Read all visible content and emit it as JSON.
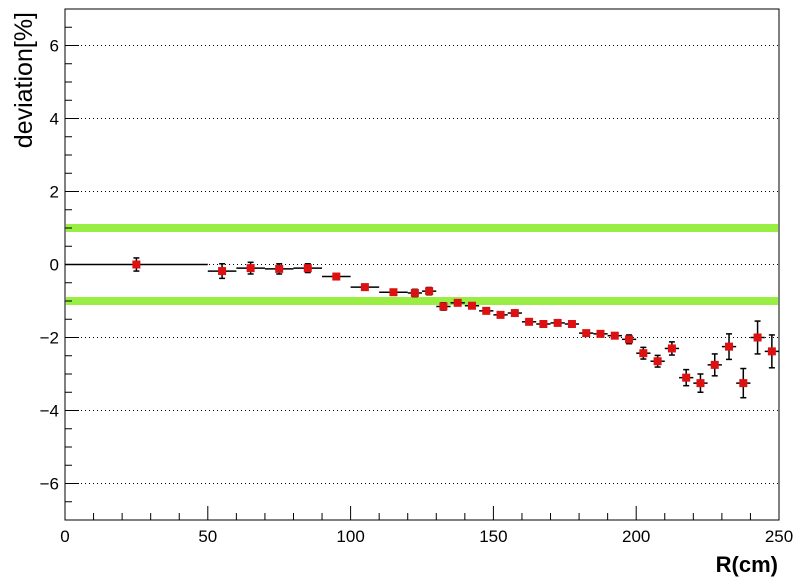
{
  "chart_data": {
    "type": "scatter",
    "xlabel": "R(cm)",
    "ylabel": "deviation[%]",
    "xlim": [
      0,
      250
    ],
    "ylim": [
      -7,
      7
    ],
    "x_major_ticks": [
      0,
      50,
      100,
      150,
      200,
      250
    ],
    "x_tick_labels": [
      "0",
      "50",
      "100",
      "150",
      "200",
      "250"
    ],
    "y_major_ticks": [
      -6,
      -4,
      -2,
      0,
      2,
      4,
      6
    ],
    "y_tick_labels": [
      "−6",
      "−4",
      "−2",
      "0",
      "2",
      "4",
      "6"
    ],
    "grid": "horizontal dotted at y major ticks",
    "reference_lines": [
      {
        "y": 1,
        "color": "#99ee44"
      },
      {
        "y": -1,
        "color": "#99ee44"
      }
    ],
    "marker_color": "#dd1111",
    "errorbar_color": "#000000",
    "points": [
      {
        "x": 25,
        "y": 0.0,
        "xerr": 25,
        "yerr": 0.18
      },
      {
        "x": 55,
        "y": -0.18,
        "xerr": 5,
        "yerr": 0.2
      },
      {
        "x": 65,
        "y": -0.1,
        "xerr": 5,
        "yerr": 0.16
      },
      {
        "x": 75,
        "y": -0.12,
        "xerr": 5,
        "yerr": 0.14
      },
      {
        "x": 85,
        "y": -0.1,
        "xerr": 5,
        "yerr": 0.12
      },
      {
        "x": 95,
        "y": -0.33,
        "xerr": 5,
        "yerr": 0.08
      },
      {
        "x": 105,
        "y": -0.62,
        "xerr": 5,
        "yerr": 0.06
      },
      {
        "x": 115,
        "y": -0.76,
        "xerr": 5,
        "yerr": 0.06
      },
      {
        "x": 122.5,
        "y": -0.78,
        "xerr": 2.5,
        "yerr": 0.1
      },
      {
        "x": 127.5,
        "y": -0.73,
        "xerr": 2.5,
        "yerr": 0.1
      },
      {
        "x": 132.5,
        "y": -1.15,
        "xerr": 2.5,
        "yerr": 0.1
      },
      {
        "x": 137.5,
        "y": -1.05,
        "xerr": 2.5,
        "yerr": 0.08
      },
      {
        "x": 142.5,
        "y": -1.13,
        "xerr": 2.5,
        "yerr": 0.06
      },
      {
        "x": 147.5,
        "y": -1.27,
        "xerr": 2.5,
        "yerr": 0.06
      },
      {
        "x": 152.5,
        "y": -1.38,
        "xerr": 2.5,
        "yerr": 0.06
      },
      {
        "x": 157.5,
        "y": -1.33,
        "xerr": 2.5,
        "yerr": 0.06
      },
      {
        "x": 162.5,
        "y": -1.57,
        "xerr": 2.5,
        "yerr": 0.06
      },
      {
        "x": 167.5,
        "y": -1.63,
        "xerr": 2.5,
        "yerr": 0.06
      },
      {
        "x": 172.5,
        "y": -1.6,
        "xerr": 2.5,
        "yerr": 0.06
      },
      {
        "x": 177.5,
        "y": -1.63,
        "xerr": 2.5,
        "yerr": 0.06
      },
      {
        "x": 182.5,
        "y": -1.88,
        "xerr": 2.5,
        "yerr": 0.06
      },
      {
        "x": 187.5,
        "y": -1.9,
        "xerr": 2.5,
        "yerr": 0.06
      },
      {
        "x": 192.5,
        "y": -1.95,
        "xerr": 2.5,
        "yerr": 0.08
      },
      {
        "x": 197.5,
        "y": -2.05,
        "xerr": 2.5,
        "yerr": 0.12
      },
      {
        "x": 202.5,
        "y": -2.43,
        "xerr": 2.5,
        "yerr": 0.16
      },
      {
        "x": 207.5,
        "y": -2.65,
        "xerr": 2.5,
        "yerr": 0.16
      },
      {
        "x": 212.5,
        "y": -2.3,
        "xerr": 2.5,
        "yerr": 0.18
      },
      {
        "x": 217.5,
        "y": -3.1,
        "xerr": 2.5,
        "yerr": 0.22
      },
      {
        "x": 222.5,
        "y": -3.25,
        "xerr": 2.5,
        "yerr": 0.25
      },
      {
        "x": 227.5,
        "y": -2.75,
        "xerr": 2.5,
        "yerr": 0.3
      },
      {
        "x": 232.5,
        "y": -2.25,
        "xerr": 2.5,
        "yerr": 0.35
      },
      {
        "x": 237.5,
        "y": -3.25,
        "xerr": 2.5,
        "yerr": 0.4
      },
      {
        "x": 242.5,
        "y": -2.0,
        "xerr": 2.5,
        "yerr": 0.45
      },
      {
        "x": 247.5,
        "y": -2.38,
        "xerr": 2.5,
        "yerr": 0.45
      }
    ]
  }
}
